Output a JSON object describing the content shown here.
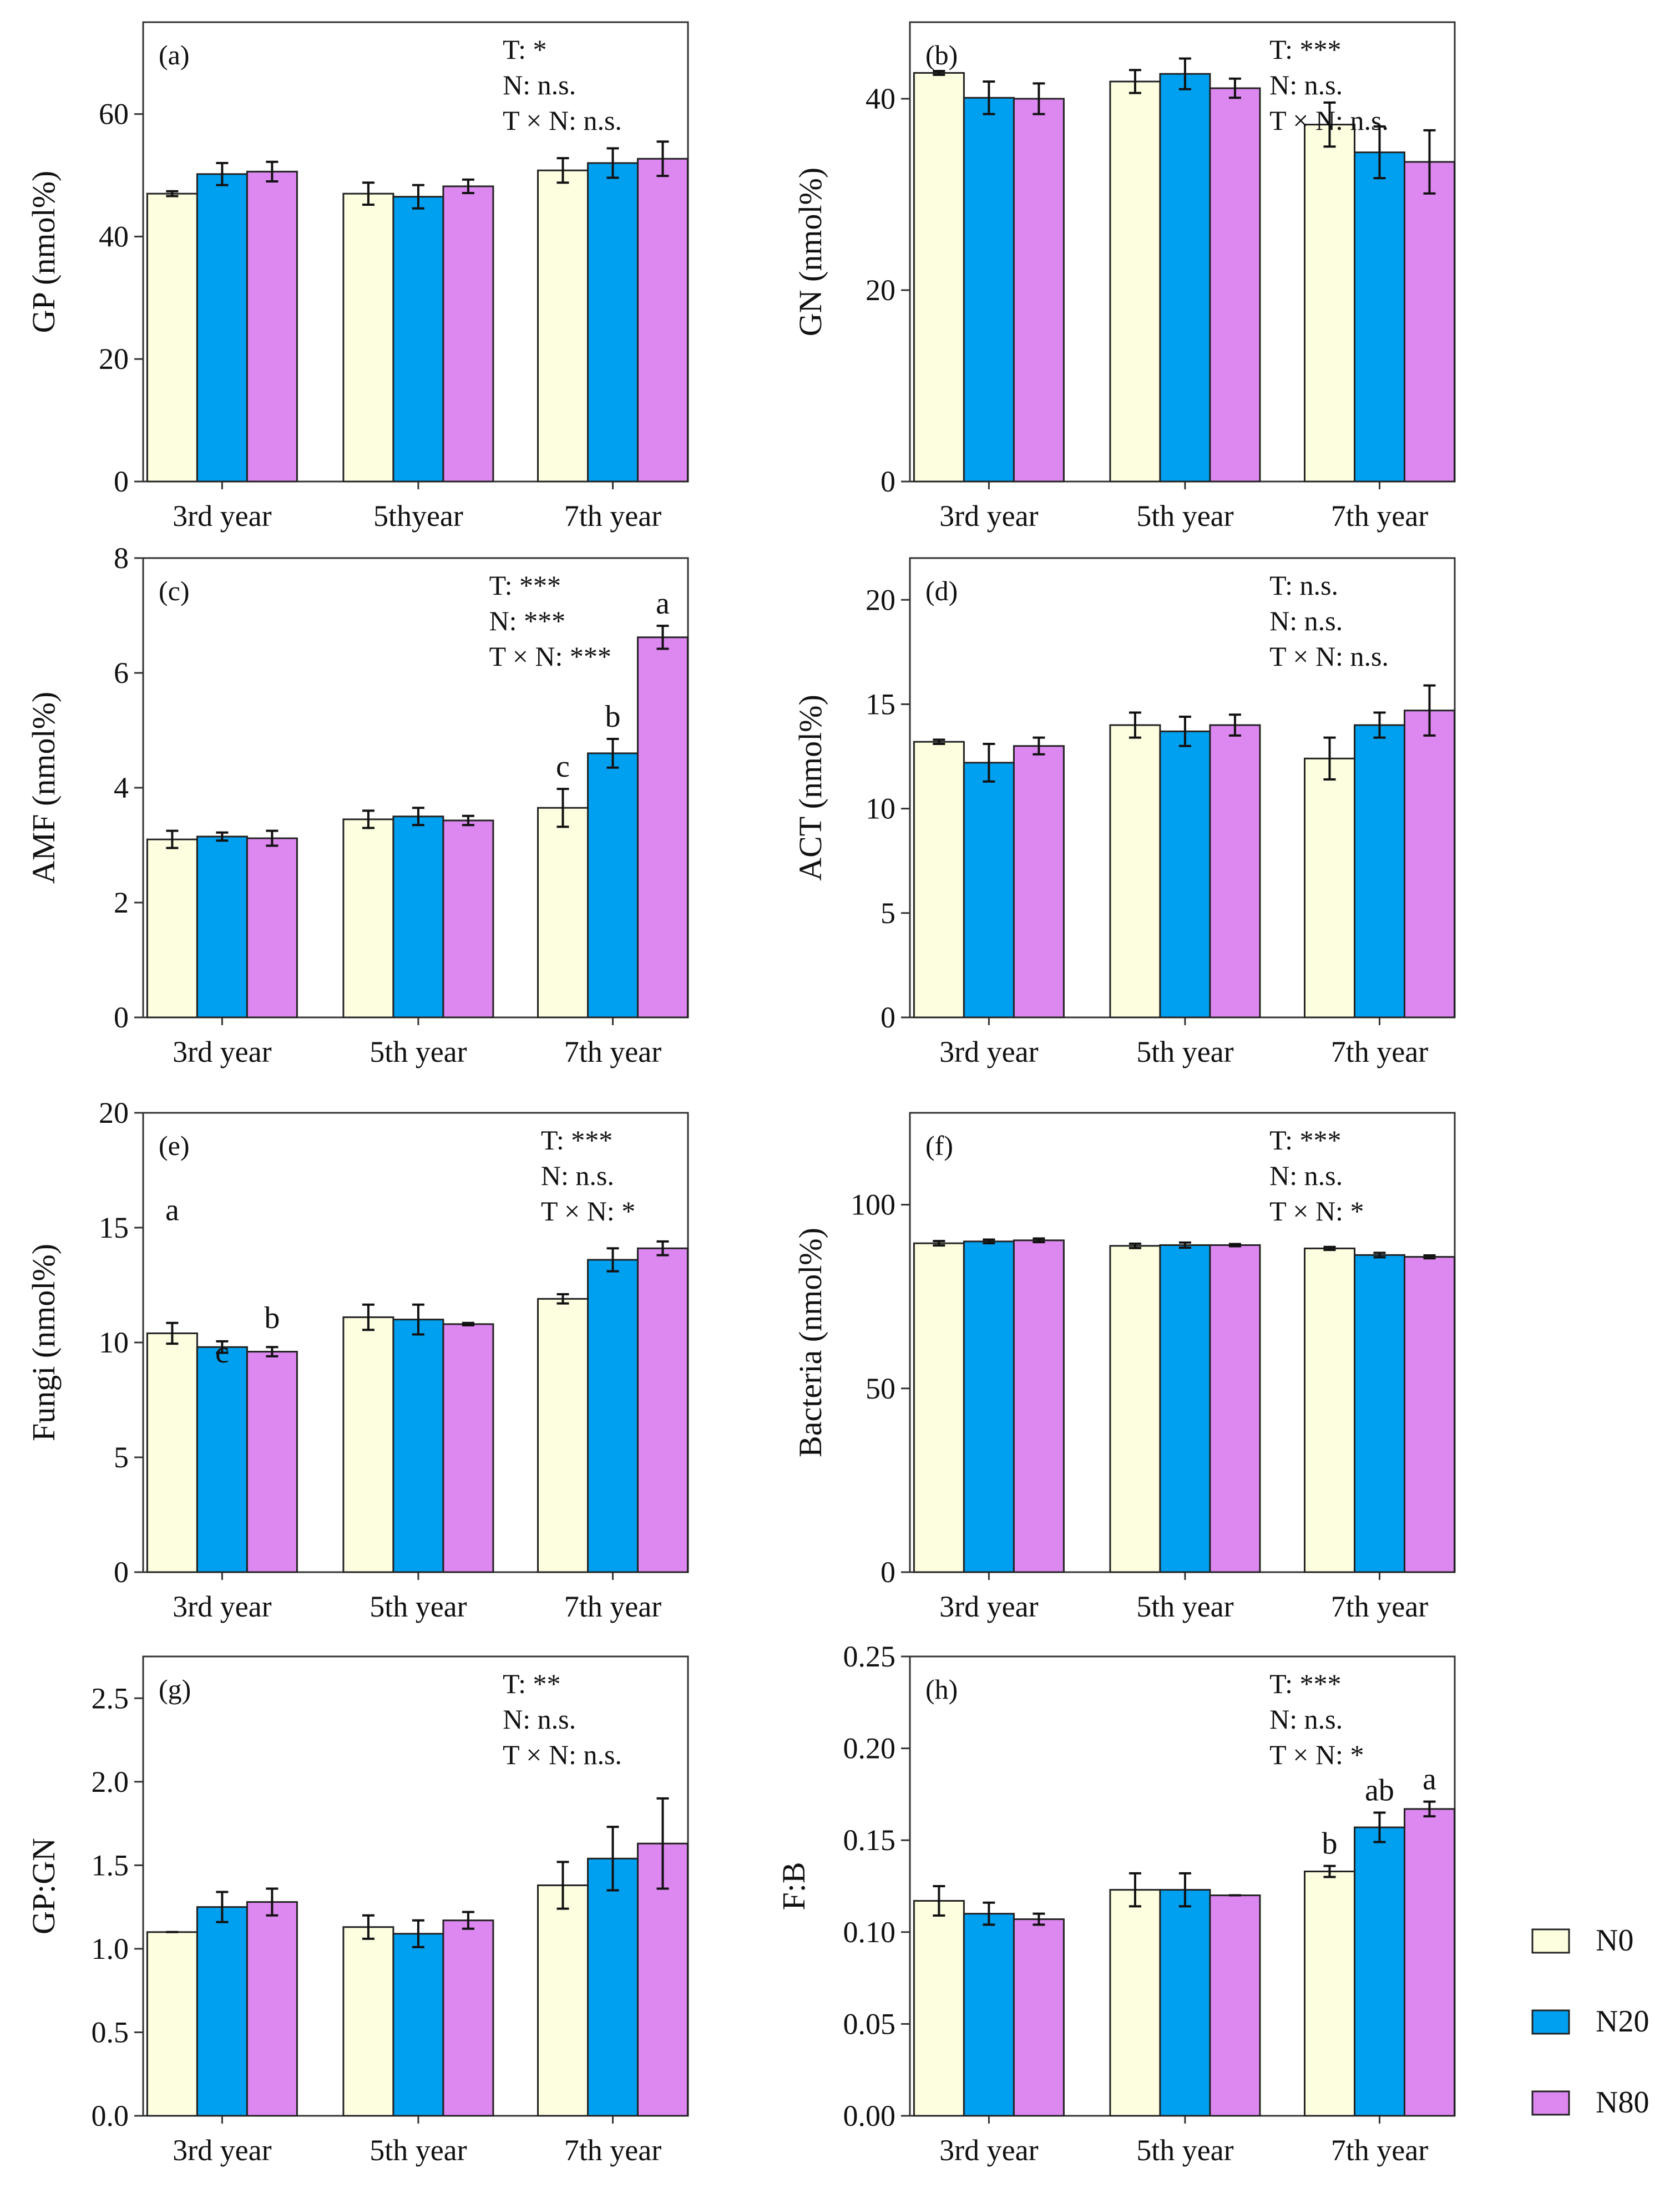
{
  "figure": {
    "legend": [
      {
        "name": "N0",
        "color": "#fdfde0"
      },
      {
        "name": "N20",
        "color": "#00a0f0"
      },
      {
        "name": "N80",
        "color": "#dd88f0"
      }
    ]
  },
  "chart_data": [
    {
      "type": "bar",
      "panel": "(a)",
      "ylabel": "GP (nmol%)",
      "categories": [
        "3rd year",
        "5thyear",
        "7th year"
      ],
      "ylim": [
        0,
        75
      ],
      "yticks": [
        0,
        20,
        40,
        60
      ],
      "series": [
        {
          "name": "N0",
          "values": [
            47.0,
            47.0,
            50.8
          ],
          "errors": [
            0.4,
            1.8,
            2.0
          ]
        },
        {
          "name": "N20",
          "values": [
            50.2,
            46.5,
            52.0
          ],
          "errors": [
            1.8,
            1.9,
            2.4
          ]
        },
        {
          "name": "N80",
          "values": [
            50.6,
            48.2,
            52.7
          ],
          "errors": [
            1.6,
            1.1,
            2.8
          ]
        }
      ],
      "stats": [
        "T: *",
        "N: n.s.",
        "T × N: n.s."
      ],
      "letters": []
    },
    {
      "type": "bar",
      "panel": "(b)",
      "ylabel": "GN (nmol%)",
      "categories": [
        "3rd year",
        "5th year",
        "7th year"
      ],
      "ylim": [
        0,
        48
      ],
      "yticks": [
        0,
        20,
        40
      ],
      "series": [
        {
          "name": "N0",
          "values": [
            42.7,
            41.8,
            37.3
          ],
          "errors": [
            0.2,
            1.2,
            2.3
          ]
        },
        {
          "name": "N20",
          "values": [
            40.1,
            42.6,
            34.4
          ],
          "errors": [
            1.7,
            1.6,
            2.7
          ]
        },
        {
          "name": "N80",
          "values": [
            40.0,
            41.1,
            33.4
          ],
          "errors": [
            1.6,
            1.0,
            3.3
          ]
        }
      ],
      "stats": [
        "T: ***",
        "N: n.s.",
        "T × N: n.s."
      ],
      "letters": []
    },
    {
      "type": "bar",
      "panel": "(c)",
      "ylabel": "AMF (nmol%)",
      "categories": [
        "3rd year",
        "5th year",
        "7th year"
      ],
      "ylim": [
        0,
        8
      ],
      "yticks": [
        0,
        2,
        4,
        6,
        8
      ],
      "series": [
        {
          "name": "N0",
          "values": [
            3.1,
            3.45,
            3.65
          ],
          "errors": [
            0.15,
            0.15,
            0.33
          ]
        },
        {
          "name": "N20",
          "values": [
            3.15,
            3.5,
            4.6
          ],
          "errors": [
            0.07,
            0.15,
            0.25
          ]
        },
        {
          "name": "N80",
          "values": [
            3.12,
            3.43,
            6.62
          ],
          "errors": [
            0.13,
            0.08,
            0.2
          ]
        }
      ],
      "stats": [
        "T: ***",
        "N: ***",
        "T × N: ***"
      ],
      "letters": [
        {
          "text": "c",
          "category": 2,
          "series": 0
        },
        {
          "text": "b",
          "category": 2,
          "series": 1
        },
        {
          "text": "a",
          "category": 2,
          "series": 2
        }
      ]
    },
    {
      "type": "bar",
      "panel": "(d)",
      "ylabel": "ACT (nmol%)",
      "categories": [
        "3rd year",
        "5th year",
        "7th year"
      ],
      "ylim": [
        0,
        22
      ],
      "yticks": [
        0,
        5,
        10,
        15,
        20
      ],
      "series": [
        {
          "name": "N0",
          "values": [
            13.2,
            14.0,
            12.4
          ],
          "errors": [
            0.1,
            0.6,
            1.0
          ]
        },
        {
          "name": "N20",
          "values": [
            12.2,
            13.7,
            14.0
          ],
          "errors": [
            0.9,
            0.7,
            0.6
          ]
        },
        {
          "name": "N80",
          "values": [
            13.0,
            14.0,
            14.7
          ],
          "errors": [
            0.4,
            0.5,
            1.2
          ]
        }
      ],
      "stats": [
        "T: n.s.",
        "N: n.s.",
        "T × N: n.s."
      ],
      "letters": []
    },
    {
      "type": "bar",
      "panel": "(e)",
      "ylabel": "Fungi (nmol%)",
      "categories": [
        "3rd year",
        "5th year",
        "7th year"
      ],
      "ylim": [
        0,
        20
      ],
      "yticks": [
        0,
        5,
        10,
        15,
        20
      ],
      "series": [
        {
          "name": "N0",
          "values": [
            10.4,
            11.1,
            11.9
          ],
          "errors": [
            0.45,
            0.55,
            0.2
          ]
        },
        {
          "name": "N20",
          "values": [
            9.8,
            11.0,
            13.6
          ],
          "errors": [
            0.25,
            0.65,
            0.5
          ]
        },
        {
          "name": "N80",
          "values": [
            9.6,
            10.8,
            14.1
          ],
          "errors": [
            0.2,
            0.05,
            0.3
          ]
        }
      ],
      "stats": [
        "T: ***",
        "N: n.s.",
        "T × N: *"
      ],
      "letters": [
        {
          "text": "a",
          "category": 0,
          "series": 0,
          "value": 14.8
        },
        {
          "text": "c",
          "category": 0,
          "series": 1,
          "value": 8.6
        },
        {
          "text": "b",
          "category": 0,
          "series": 2,
          "value": 10.1
        }
      ]
    },
    {
      "type": "bar",
      "panel": "(f)",
      "ylabel": "Bacteria (nmol%)",
      "categories": [
        "3rd year",
        "5th year",
        "7th year"
      ],
      "ylim": [
        0,
        125
      ],
      "yticks": [
        0,
        50,
        100
      ],
      "series": [
        {
          "name": "N0",
          "values": [
            89.5,
            88.8,
            88.1
          ],
          "errors": [
            0.6,
            0.6,
            0.4
          ]
        },
        {
          "name": "N20",
          "values": [
            90.0,
            89.0,
            86.3
          ],
          "errors": [
            0.5,
            0.7,
            0.6
          ]
        },
        {
          "name": "N80",
          "values": [
            90.3,
            89.0,
            85.8
          ],
          "errors": [
            0.5,
            0.3,
            0.4
          ]
        }
      ],
      "stats": [
        "T: ***",
        "N: n.s.",
        "T × N: *"
      ],
      "letters": []
    },
    {
      "type": "bar",
      "panel": "(g)",
      "ylabel": "GP:GN",
      "categories": [
        "3rd year",
        "5th year",
        "7th year"
      ],
      "ylim": [
        0,
        2.75
      ],
      "yticks": [
        0.0,
        0.5,
        1.0,
        1.5,
        2.0,
        2.5
      ],
      "tickDecimals": 1,
      "series": [
        {
          "name": "N0",
          "values": [
            1.1,
            1.13,
            1.38
          ],
          "errors": [
            0.0,
            0.07,
            0.14
          ]
        },
        {
          "name": "N20",
          "values": [
            1.25,
            1.09,
            1.54
          ],
          "errors": [
            0.09,
            0.08,
            0.19
          ]
        },
        {
          "name": "N80",
          "values": [
            1.28,
            1.17,
            1.63
          ],
          "errors": [
            0.08,
            0.05,
            0.27
          ]
        }
      ],
      "stats": [
        "T: **",
        "N: n.s.",
        "T × N: n.s."
      ],
      "letters": []
    },
    {
      "type": "bar",
      "panel": "(h)",
      "ylabel": "F:B",
      "categories": [
        "3rd year",
        "5th year",
        "7th year"
      ],
      "ylim": [
        0,
        0.25
      ],
      "yticks": [
        0.0,
        0.05,
        0.1,
        0.15,
        0.2,
        0.25
      ],
      "tickDecimals": 2,
      "series": [
        {
          "name": "N0",
          "values": [
            0.117,
            0.123,
            0.133
          ],
          "errors": [
            0.008,
            0.009,
            0.003
          ]
        },
        {
          "name": "N20",
          "values": [
            0.11,
            0.123,
            0.157
          ],
          "errors": [
            0.006,
            0.009,
            0.008
          ]
        },
        {
          "name": "N80",
          "values": [
            0.107,
            0.12,
            0.167
          ],
          "errors": [
            0.003,
            0.0,
            0.004
          ]
        }
      ],
      "stats": [
        "T: ***",
        "N: n.s.",
        "T × N: *"
      ],
      "letters": [
        {
          "text": "b",
          "category": 2,
          "series": 0
        },
        {
          "text": "ab",
          "category": 2,
          "series": 1
        },
        {
          "text": "a",
          "category": 2,
          "series": 2
        }
      ]
    }
  ]
}
